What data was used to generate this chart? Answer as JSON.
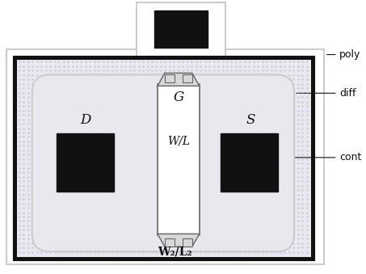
{
  "white": "#ffffff",
  "light_gray": "#cccccc",
  "mid_gray": "#aaaaaa",
  "dark": "#111111",
  "stipple_bg": "#e8e8ee",
  "stipple_dot": "#aaaacc",
  "gate_fill": "#d8d8d8",
  "inner_white": "#f5f5f5",
  "line_color": "#666666",
  "labels": {
    "D": "D",
    "G": "G",
    "S": "S",
    "WL": "W/L",
    "W2L2": "W₂/L₂",
    "poly": "poly",
    "diff": "diff",
    "cont": "cont"
  },
  "figsize": [
    4.53,
    3.39
  ],
  "dpi": 100
}
